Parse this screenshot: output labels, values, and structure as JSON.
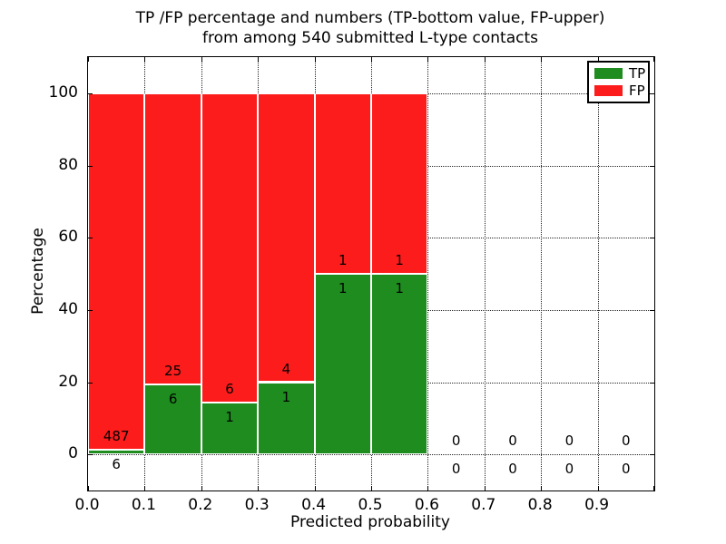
{
  "title": {
    "line1": "TP /FP percentage and numbers (TP-bottom value, FP-upper)",
    "line2": "from among 540 submitted L-type contacts"
  },
  "legend": {
    "tp_label": "TP",
    "fp_label": "FP"
  },
  "colors": {
    "tp": "#1e8c1e",
    "fp": "#fc1c1c",
    "bar_edge": "#ffffff",
    "grid": "#222222",
    "spine": "#000000"
  },
  "chart_data": {
    "type": "bar",
    "stacked": true,
    "title": "TP /FP percentage and numbers (TP-bottom value, FP-upper) from among 540 submitted L-type contacts",
    "xlabel": "Predicted probability",
    "ylabel": "Percentage",
    "xlim": [
      0.0,
      1.0
    ],
    "ylim": [
      -10,
      110
    ],
    "grid": true,
    "legend_position": "upper right",
    "x_ticks": [
      {
        "value": 0.0,
        "label": "0.0"
      },
      {
        "value": 0.1,
        "label": "0.1"
      },
      {
        "value": 0.2,
        "label": "0.2"
      },
      {
        "value": 0.3,
        "label": "0.3"
      },
      {
        "value": 0.4,
        "label": "0.4"
      },
      {
        "value": 0.5,
        "label": "0.5"
      },
      {
        "value": 0.6,
        "label": "0.6"
      },
      {
        "value": 0.7,
        "label": "0.7"
      },
      {
        "value": 0.8,
        "label": "0.8"
      },
      {
        "value": 0.9,
        "label": "0.9"
      },
      {
        "value": 1.0,
        "label": ""
      }
    ],
    "y_ticks": [
      {
        "value": 0,
        "label": "0"
      },
      {
        "value": 20,
        "label": "20"
      },
      {
        "value": 40,
        "label": "40"
      },
      {
        "value": 60,
        "label": "60"
      },
      {
        "value": 80,
        "label": "80"
      },
      {
        "value": 100,
        "label": "100"
      }
    ],
    "bins": [
      {
        "x0": 0.0,
        "x1": 0.1,
        "tp_count": 6,
        "fp_count": 487,
        "tp_pct": 1.2,
        "fp_pct": 98.8
      },
      {
        "x0": 0.1,
        "x1": 0.2,
        "tp_count": 6,
        "fp_count": 25,
        "tp_pct": 19.4,
        "fp_pct": 80.6
      },
      {
        "x0": 0.2,
        "x1": 0.3,
        "tp_count": 1,
        "fp_count": 6,
        "tp_pct": 14.3,
        "fp_pct": 85.7
      },
      {
        "x0": 0.3,
        "x1": 0.4,
        "tp_count": 1,
        "fp_count": 4,
        "tp_pct": 20.0,
        "fp_pct": 80.0
      },
      {
        "x0": 0.4,
        "x1": 0.5,
        "tp_count": 1,
        "fp_count": 1,
        "tp_pct": 50.0,
        "fp_pct": 50.0
      },
      {
        "x0": 0.5,
        "x1": 0.6,
        "tp_count": 1,
        "fp_count": 1,
        "tp_pct": 50.0,
        "fp_pct": 50.0
      },
      {
        "x0": 0.6,
        "x1": 0.7,
        "tp_count": 0,
        "fp_count": 0,
        "tp_pct": 0,
        "fp_pct": 0
      },
      {
        "x0": 0.7,
        "x1": 0.8,
        "tp_count": 0,
        "fp_count": 0,
        "tp_pct": 0,
        "fp_pct": 0
      },
      {
        "x0": 0.8,
        "x1": 0.9,
        "tp_count": 0,
        "fp_count": 0,
        "tp_pct": 0,
        "fp_pct": 0
      },
      {
        "x0": 0.9,
        "x1": 1.0,
        "tp_count": 0,
        "fp_count": 0,
        "tp_pct": 0,
        "fp_pct": 0
      }
    ],
    "series": [
      {
        "name": "TP",
        "counts": [
          6,
          6,
          1,
          1,
          1,
          1,
          0,
          0,
          0,
          0
        ]
      },
      {
        "name": "FP",
        "counts": [
          487,
          25,
          6,
          4,
          1,
          1,
          0,
          0,
          0,
          0
        ]
      }
    ]
  }
}
